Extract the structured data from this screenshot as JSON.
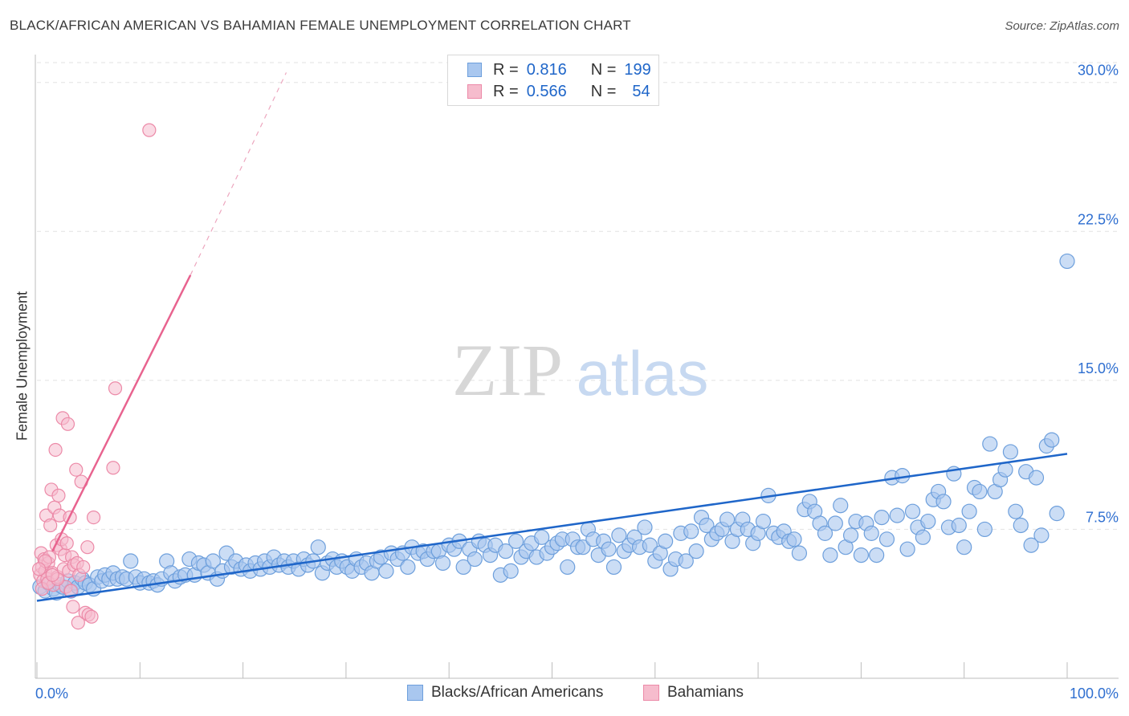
{
  "title": "BLACK/AFRICAN AMERICAN VS BAHAMIAN FEMALE UNEMPLOYMENT CORRELATION CHART",
  "source": "Source: ZipAtlas.com",
  "watermark": {
    "zip": "ZIP",
    "atlas": "atlas"
  },
  "legend_top": [
    {
      "r_label": "R =",
      "r_value": "0.816",
      "n_label": "N =",
      "n_value": "199"
    },
    {
      "r_label": "R =",
      "r_value": "0.566",
      "n_label": "N =",
      "n_value": "54"
    }
  ],
  "legend_bottom": [
    "Blacks/African Americans",
    "Bahamians"
  ],
  "colors": {
    "blue_fill": "#a9c7ef",
    "blue_stroke": "#6d9fdc",
    "blue_line": "#1f66c9",
    "pink_fill": "#f6bccd",
    "pink_stroke": "#ec8aa8",
    "pink_line": "#e8638f",
    "axis_label": "#2f6fd0",
    "grid": "#e2e2e2"
  },
  "chart_data": {
    "type": "scatter",
    "title": "BLACK/AFRICAN AMERICAN VS BAHAMIAN FEMALE UNEMPLOYMENT CORRELATION CHART",
    "xlabel": "",
    "ylabel": "Female Unemployment",
    "xlim": [
      0,
      100
    ],
    "ylim": [
      0,
      31
    ],
    "x_tick_labels": [
      "0.0%",
      "100.0%"
    ],
    "y_ticks": [
      7.5,
      15.0,
      22.5,
      30.0
    ],
    "y_tick_labels": [
      "7.5%",
      "15.0%",
      "22.5%",
      "30.0%"
    ],
    "grid": true,
    "legend_position": "top-center",
    "series": [
      {
        "name": "Blacks/African Americans",
        "R": 0.816,
        "N": 199,
        "trend": {
          "x": [
            0,
            100
          ],
          "y": [
            3.9,
            11.3
          ],
          "dashed_extension": false
        },
        "points": [
          [
            0.3,
            4.6
          ],
          [
            0.8,
            4.4
          ],
          [
            1.1,
            4.8
          ],
          [
            1.6,
            4.5
          ],
          [
            1.9,
            4.3
          ],
          [
            2.2,
            4.7
          ],
          [
            2.5,
            4.6
          ],
          [
            3.0,
            4.9
          ],
          [
            3.3,
            4.4
          ],
          [
            3.7,
            4.8
          ],
          [
            4.0,
            4.6
          ],
          [
            4.4,
            5.0
          ],
          [
            4.7,
            4.8
          ],
          [
            5.1,
            4.7
          ],
          [
            5.5,
            4.5
          ],
          [
            5.9,
            5.1
          ],
          [
            6.3,
            4.9
          ],
          [
            6.6,
            5.2
          ],
          [
            7.0,
            5.0
          ],
          [
            7.4,
            5.3
          ],
          [
            7.8,
            5.0
          ],
          [
            8.3,
            5.1
          ],
          [
            8.7,
            5.0
          ],
          [
            9.1,
            5.9
          ],
          [
            9.6,
            5.1
          ],
          [
            10.0,
            4.8
          ],
          [
            10.4,
            5.0
          ],
          [
            10.9,
            4.8
          ],
          [
            11.3,
            4.9
          ],
          [
            11.7,
            4.7
          ],
          [
            12.1,
            5.0
          ],
          [
            12.6,
            5.9
          ],
          [
            13.0,
            5.3
          ],
          [
            13.4,
            4.9
          ],
          [
            13.9,
            5.1
          ],
          [
            14.4,
            5.2
          ],
          [
            14.8,
            6.0
          ],
          [
            15.3,
            5.2
          ],
          [
            15.7,
            5.8
          ],
          [
            16.2,
            5.7
          ],
          [
            16.6,
            5.3
          ],
          [
            17.1,
            5.9
          ],
          [
            17.5,
            5.0
          ],
          [
            18.0,
            5.4
          ],
          [
            18.4,
            6.3
          ],
          [
            18.9,
            5.6
          ],
          [
            19.3,
            5.9
          ],
          [
            19.8,
            5.5
          ],
          [
            20.3,
            5.7
          ],
          [
            20.7,
            5.4
          ],
          [
            21.2,
            5.8
          ],
          [
            21.7,
            5.5
          ],
          [
            22.1,
            5.9
          ],
          [
            22.6,
            5.6
          ],
          [
            23.0,
            6.1
          ],
          [
            23.5,
            5.7
          ],
          [
            24.0,
            5.9
          ],
          [
            24.4,
            5.6
          ],
          [
            24.9,
            5.9
          ],
          [
            25.4,
            5.5
          ],
          [
            25.9,
            6.0
          ],
          [
            26.3,
            5.7
          ],
          [
            26.8,
            5.9
          ],
          [
            27.3,
            6.6
          ],
          [
            27.7,
            5.3
          ],
          [
            28.2,
            5.8
          ],
          [
            28.7,
            6.0
          ],
          [
            29.1,
            5.6
          ],
          [
            29.6,
            5.9
          ],
          [
            30.1,
            5.6
          ],
          [
            30.6,
            5.4
          ],
          [
            31.0,
            6.0
          ],
          [
            31.5,
            5.6
          ],
          [
            32.0,
            5.8
          ],
          [
            32.5,
            5.3
          ],
          [
            33.0,
            5.9
          ],
          [
            33.4,
            6.1
          ],
          [
            33.9,
            5.4
          ],
          [
            34.4,
            6.3
          ],
          [
            35.0,
            6.0
          ],
          [
            35.5,
            6.3
          ],
          [
            36.0,
            5.6
          ],
          [
            36.4,
            6.6
          ],
          [
            37.0,
            6.3
          ],
          [
            37.5,
            6.4
          ],
          [
            37.9,
            6.0
          ],
          [
            38.5,
            6.4
          ],
          [
            39.0,
            6.4
          ],
          [
            39.4,
            5.8
          ],
          [
            40.0,
            6.7
          ],
          [
            40.5,
            6.5
          ],
          [
            41.0,
            6.9
          ],
          [
            41.4,
            5.6
          ],
          [
            42.0,
            6.5
          ],
          [
            42.5,
            6.0
          ],
          [
            42.9,
            6.9
          ],
          [
            43.5,
            6.7
          ],
          [
            44.0,
            6.2
          ],
          [
            44.5,
            6.7
          ],
          [
            45.0,
            5.2
          ],
          [
            45.5,
            6.4
          ],
          [
            46.0,
            5.4
          ],
          [
            46.5,
            6.9
          ],
          [
            47.0,
            6.1
          ],
          [
            47.5,
            6.4
          ],
          [
            48.0,
            6.8
          ],
          [
            48.5,
            6.1
          ],
          [
            49.0,
            7.1
          ],
          [
            49.5,
            6.3
          ],
          [
            50.0,
            6.6
          ],
          [
            50.5,
            6.8
          ],
          [
            51.0,
            7.0
          ],
          [
            51.5,
            5.6
          ],
          [
            52.0,
            7.0
          ],
          [
            52.5,
            6.6
          ],
          [
            53.0,
            6.6
          ],
          [
            53.5,
            7.5
          ],
          [
            54.0,
            7.0
          ],
          [
            54.5,
            6.2
          ],
          [
            55.0,
            6.9
          ],
          [
            55.5,
            6.5
          ],
          [
            56.0,
            5.6
          ],
          [
            56.5,
            7.2
          ],
          [
            57.0,
            6.4
          ],
          [
            57.5,
            6.7
          ],
          [
            58.0,
            7.1
          ],
          [
            58.5,
            6.6
          ],
          [
            59.0,
            7.6
          ],
          [
            59.5,
            6.7
          ],
          [
            60.0,
            5.9
          ],
          [
            60.5,
            6.3
          ],
          [
            61.0,
            6.9
          ],
          [
            61.5,
            5.5
          ],
          [
            62.0,
            6.0
          ],
          [
            62.5,
            7.3
          ],
          [
            63.0,
            5.9
          ],
          [
            63.5,
            7.4
          ],
          [
            64.0,
            6.4
          ],
          [
            64.5,
            8.1
          ],
          [
            65.0,
            7.7
          ],
          [
            65.5,
            7.0
          ],
          [
            66.0,
            7.3
          ],
          [
            66.5,
            7.5
          ],
          [
            67.0,
            8.0
          ],
          [
            67.5,
            6.9
          ],
          [
            68.0,
            7.5
          ],
          [
            68.5,
            8.0
          ],
          [
            69.0,
            7.5
          ],
          [
            69.5,
            6.8
          ],
          [
            70.0,
            7.3
          ],
          [
            70.5,
            7.9
          ],
          [
            71.0,
            9.2
          ],
          [
            71.5,
            7.3
          ],
          [
            72.0,
            7.1
          ],
          [
            72.5,
            7.4
          ],
          [
            73.0,
            6.9
          ],
          [
            73.5,
            7.0
          ],
          [
            74.0,
            6.3
          ],
          [
            74.5,
            8.5
          ],
          [
            75.0,
            8.9
          ],
          [
            75.5,
            8.4
          ],
          [
            76.0,
            7.8
          ],
          [
            76.5,
            7.3
          ],
          [
            77.0,
            6.2
          ],
          [
            77.5,
            7.8
          ],
          [
            78.0,
            8.7
          ],
          [
            78.5,
            6.6
          ],
          [
            79.0,
            7.2
          ],
          [
            79.5,
            7.9
          ],
          [
            80.0,
            6.2
          ],
          [
            80.5,
            7.8
          ],
          [
            81.0,
            7.3
          ],
          [
            81.5,
            6.2
          ],
          [
            82.0,
            8.1
          ],
          [
            82.5,
            7.0
          ],
          [
            83.0,
            10.1
          ],
          [
            83.5,
            8.2
          ],
          [
            84.0,
            10.2
          ],
          [
            84.5,
            6.5
          ],
          [
            85.0,
            8.4
          ],
          [
            85.5,
            7.6
          ],
          [
            86.0,
            7.1
          ],
          [
            86.5,
            7.9
          ],
          [
            87.0,
            9.0
          ],
          [
            87.5,
            9.4
          ],
          [
            88.0,
            8.9
          ],
          [
            88.5,
            7.6
          ],
          [
            89.0,
            10.3
          ],
          [
            89.5,
            7.7
          ],
          [
            90.0,
            6.6
          ],
          [
            90.5,
            8.4
          ],
          [
            91.0,
            9.6
          ],
          [
            91.5,
            9.4
          ],
          [
            92.0,
            7.5
          ],
          [
            92.5,
            11.8
          ],
          [
            93.0,
            9.4
          ],
          [
            93.5,
            10.0
          ],
          [
            94.0,
            10.5
          ],
          [
            94.5,
            11.4
          ],
          [
            95.0,
            8.4
          ],
          [
            95.5,
            7.7
          ],
          [
            96.0,
            10.4
          ],
          [
            96.5,
            6.7
          ],
          [
            97.0,
            10.1
          ],
          [
            97.5,
            7.2
          ],
          [
            98.0,
            11.7
          ],
          [
            98.5,
            12.0
          ],
          [
            99.0,
            8.3
          ],
          [
            100.0,
            21.0
          ]
        ]
      },
      {
        "name": "Bahamians",
        "R": 0.566,
        "N": 54,
        "trend": {
          "x": [
            1.5,
            14.9
          ],
          "y": [
            6.4,
            20.3
          ],
          "dashed_extension": true,
          "dashed_to": [
            24.2,
            30.5
          ]
        },
        "points": [
          [
            0.3,
            5.2
          ],
          [
            0.4,
            6.3
          ],
          [
            0.5,
            5.6
          ],
          [
            0.6,
            4.9
          ],
          [
            0.7,
            6.0
          ],
          [
            0.8,
            5.4
          ],
          [
            0.9,
            8.2
          ],
          [
            1.0,
            5.0
          ],
          [
            1.1,
            5.8
          ],
          [
            1.2,
            6.1
          ],
          [
            1.3,
            7.7
          ],
          [
            1.4,
            9.5
          ],
          [
            1.5,
            5.3
          ],
          [
            1.6,
            4.7
          ],
          [
            1.7,
            8.6
          ],
          [
            1.8,
            11.5
          ],
          [
            1.9,
            6.7
          ],
          [
            2.0,
            5.1
          ],
          [
            2.1,
            9.2
          ],
          [
            2.2,
            8.2
          ],
          [
            2.3,
            6.5
          ],
          [
            2.4,
            7.0
          ],
          [
            2.5,
            13.1
          ],
          [
            2.6,
            5.5
          ],
          [
            2.7,
            6.2
          ],
          [
            2.8,
            4.6
          ],
          [
            2.9,
            6.8
          ],
          [
            3.0,
            12.8
          ],
          [
            3.1,
            5.4
          ],
          [
            3.2,
            8.1
          ],
          [
            3.3,
            4.4
          ],
          [
            3.4,
            6.1
          ],
          [
            3.5,
            3.6
          ],
          [
            3.6,
            5.7
          ],
          [
            3.8,
            10.5
          ],
          [
            3.9,
            5.8
          ],
          [
            4.0,
            2.8
          ],
          [
            4.1,
            5.2
          ],
          [
            4.3,
            9.9
          ],
          [
            4.5,
            5.6
          ],
          [
            4.7,
            3.3
          ],
          [
            4.9,
            6.6
          ],
          [
            5.0,
            3.2
          ],
          [
            5.3,
            3.1
          ],
          [
            5.5,
            8.1
          ],
          [
            7.4,
            10.6
          ],
          [
            7.6,
            14.6
          ],
          [
            10.9,
            27.6
          ],
          [
            0.5,
            4.5
          ],
          [
            1.1,
            4.8
          ],
          [
            2.0,
            5.0
          ],
          [
            0.8,
            5.9
          ],
          [
            1.5,
            5.2
          ],
          [
            0.2,
            5.5
          ]
        ]
      }
    ]
  }
}
